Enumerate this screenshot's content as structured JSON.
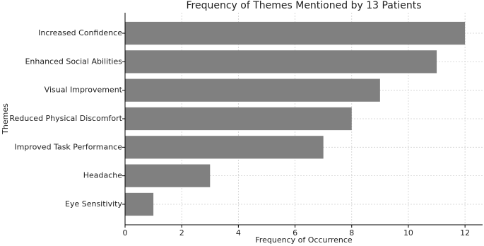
{
  "chart_data": {
    "type": "barh",
    "title": "Frequency of Themes Mentioned by 13 Patients",
    "x_label": "Frequency of Occurrence",
    "y_label": "Themes",
    "categories": [
      "Increased Confidence",
      "Enhanced Social Abilities",
      "Visual Improvement",
      "Reduced Physical Discomfort",
      "Improved Task Performance",
      "Headache",
      "Eye Sensitivity"
    ],
    "values": [
      12,
      11,
      9,
      8,
      7,
      3,
      1
    ],
    "color": "#808080",
    "xlim": [
      0,
      12.62
    ],
    "xticks": [
      0,
      2,
      4,
      6,
      8,
      10,
      12
    ],
    "grid": true
  }
}
